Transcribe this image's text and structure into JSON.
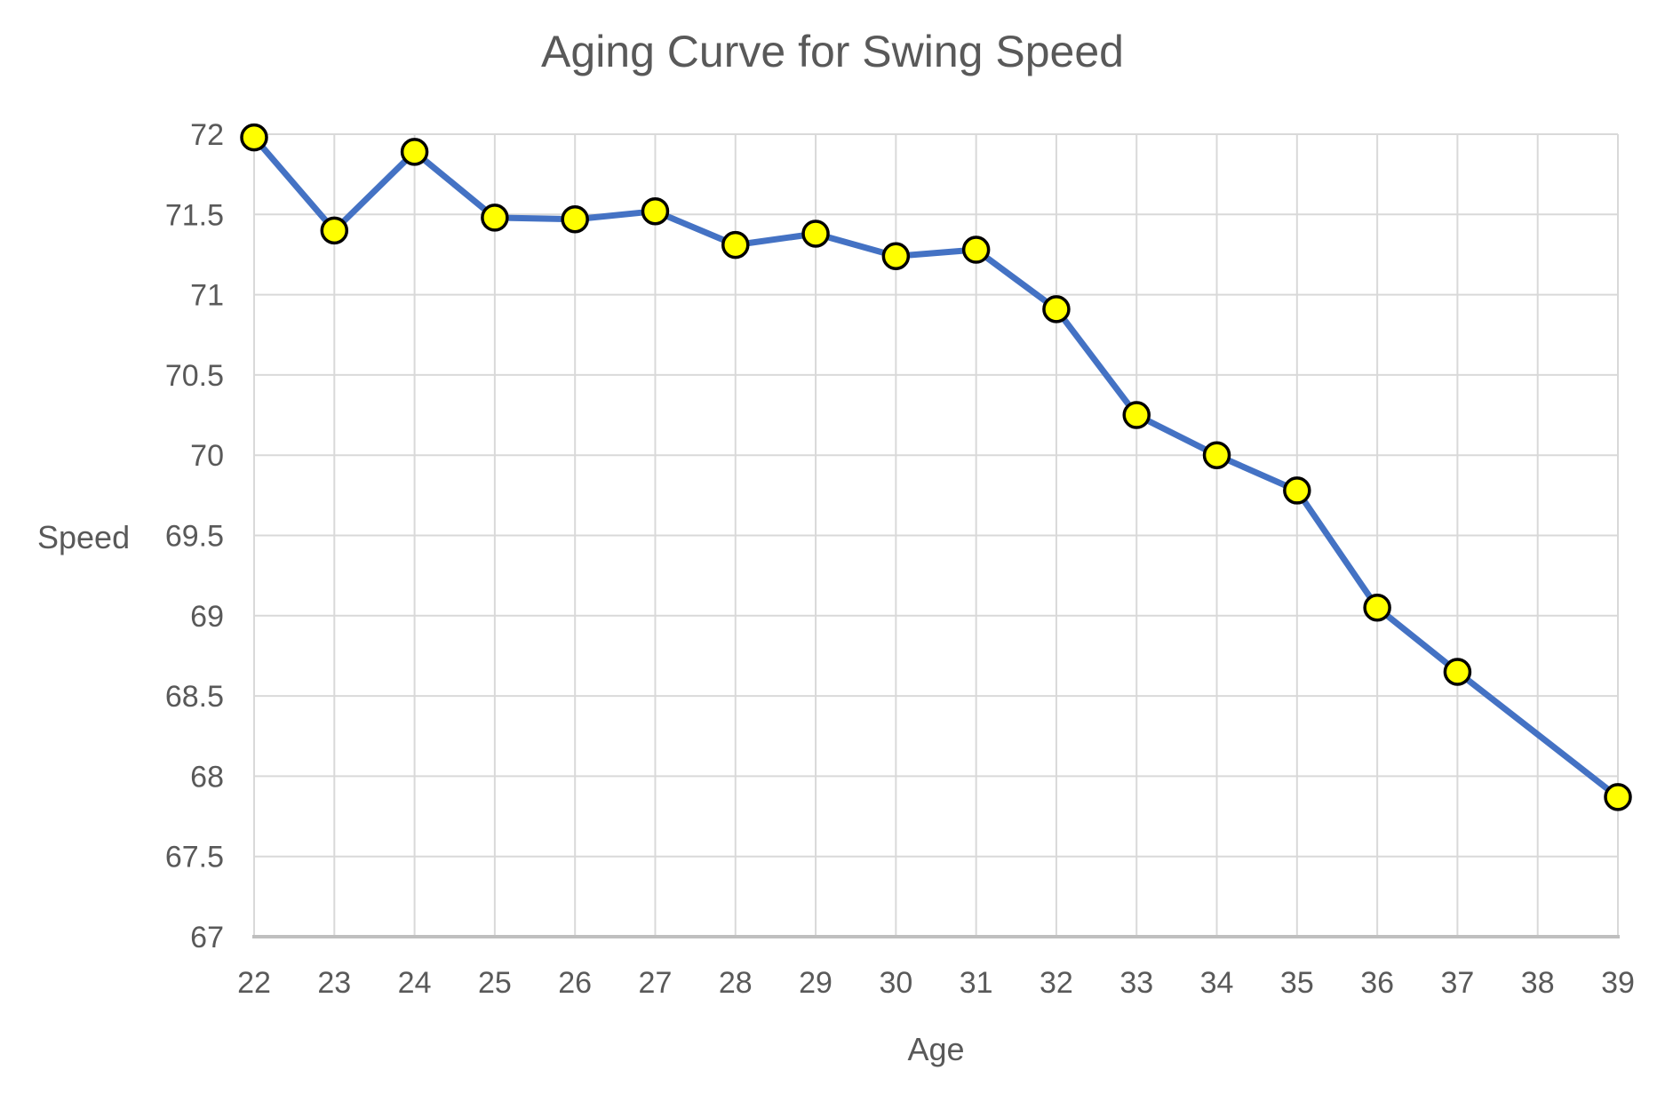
{
  "chart_data": {
    "type": "line",
    "title": "Aging Curve for Swing Speed",
    "xlabel": "Age",
    "ylabel": "Speed",
    "x": [
      22,
      23,
      24,
      25,
      26,
      27,
      28,
      29,
      30,
      31,
      32,
      33,
      34,
      35,
      36,
      37,
      39
    ],
    "y": [
      71.98,
      71.4,
      71.89,
      71.48,
      71.47,
      71.52,
      71.31,
      71.38,
      71.24,
      71.28,
      70.91,
      70.25,
      70.0,
      69.78,
      69.05,
      68.65,
      67.87
    ],
    "x_ticks": [
      22,
      23,
      24,
      25,
      26,
      27,
      28,
      29,
      30,
      31,
      32,
      33,
      34,
      35,
      36,
      37,
      38,
      39
    ],
    "y_ticks": [
      67,
      67.5,
      68,
      68.5,
      69,
      69.5,
      70,
      70.5,
      71,
      71.5,
      72
    ],
    "xlim": [
      22,
      39
    ],
    "ylim": [
      67,
      72
    ],
    "grid": true,
    "legend": "none",
    "colors": {
      "line": "#4472C4",
      "marker_fill": "#FFFF00",
      "marker_border": "#000000",
      "gridline": "#D9D9D9",
      "axis_line": "#BFBFBF",
      "text": "#595959",
      "background": "#FFFFFF"
    }
  }
}
